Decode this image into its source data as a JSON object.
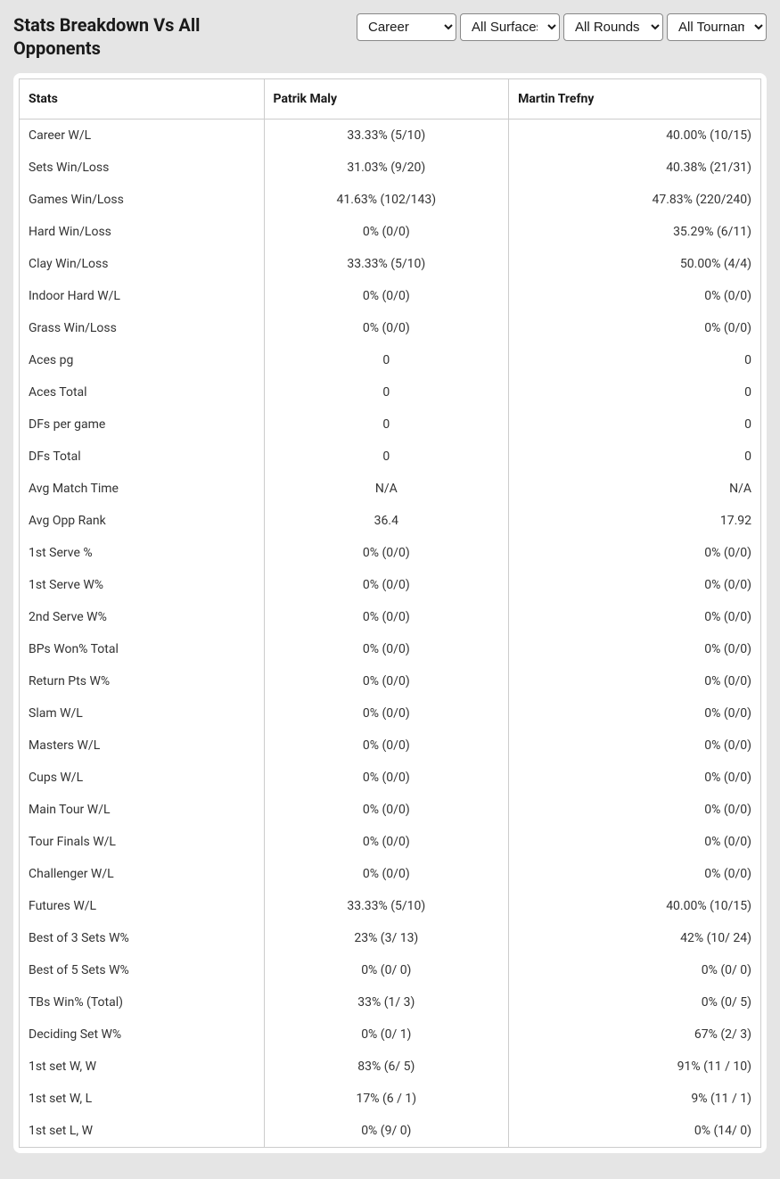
{
  "title": "Stats Breakdown Vs All Opponents",
  "filters": {
    "period": {
      "selected": "Career",
      "options": [
        "Career"
      ]
    },
    "surface": {
      "selected": "All Surfaces",
      "options": [
        "All Surfaces"
      ]
    },
    "rounds": {
      "selected": "All Rounds",
      "options": [
        "All Rounds"
      ]
    },
    "tournaments": {
      "selected": "All Tournaments",
      "options": [
        "All Tournaments"
      ]
    }
  },
  "table": {
    "headers": {
      "stat": "Stats",
      "player1": "Patrik Maly",
      "player2": "Martin Trefny"
    },
    "rows": [
      {
        "stat": "Career W/L",
        "p1": "33.33% (5/10)",
        "p2": "40.00% (10/15)"
      },
      {
        "stat": "Sets Win/Loss",
        "p1": "31.03% (9/20)",
        "p2": "40.38% (21/31)"
      },
      {
        "stat": "Games Win/Loss",
        "p1": "41.63% (102/143)",
        "p2": "47.83% (220/240)"
      },
      {
        "stat": "Hard Win/Loss",
        "p1": "0% (0/0)",
        "p2": "35.29% (6/11)"
      },
      {
        "stat": "Clay Win/Loss",
        "p1": "33.33% (5/10)",
        "p2": "50.00% (4/4)"
      },
      {
        "stat": "Indoor Hard W/L",
        "p1": "0% (0/0)",
        "p2": "0% (0/0)"
      },
      {
        "stat": "Grass Win/Loss",
        "p1": "0% (0/0)",
        "p2": "0% (0/0)"
      },
      {
        "stat": "Aces pg",
        "p1": "0",
        "p2": "0"
      },
      {
        "stat": "Aces Total",
        "p1": "0",
        "p2": "0"
      },
      {
        "stat": "DFs per game",
        "p1": "0",
        "p2": "0"
      },
      {
        "stat": "DFs Total",
        "p1": "0",
        "p2": "0"
      },
      {
        "stat": "Avg Match Time",
        "p1": "N/A",
        "p2": "N/A"
      },
      {
        "stat": "Avg Opp Rank",
        "p1": "36.4",
        "p2": "17.92"
      },
      {
        "stat": "1st Serve %",
        "p1": "0% (0/0)",
        "p2": "0% (0/0)"
      },
      {
        "stat": "1st Serve W%",
        "p1": "0% (0/0)",
        "p2": "0% (0/0)"
      },
      {
        "stat": "2nd Serve W%",
        "p1": "0% (0/0)",
        "p2": "0% (0/0)"
      },
      {
        "stat": "BPs Won% Total",
        "p1": "0% (0/0)",
        "p2": "0% (0/0)"
      },
      {
        "stat": "Return Pts W%",
        "p1": "0% (0/0)",
        "p2": "0% (0/0)"
      },
      {
        "stat": "Slam W/L",
        "p1": "0% (0/0)",
        "p2": "0% (0/0)"
      },
      {
        "stat": "Masters W/L",
        "p1": "0% (0/0)",
        "p2": "0% (0/0)"
      },
      {
        "stat": "Cups W/L",
        "p1": "0% (0/0)",
        "p2": "0% (0/0)"
      },
      {
        "stat": "Main Tour W/L",
        "p1": "0% (0/0)",
        "p2": "0% (0/0)"
      },
      {
        "stat": "Tour Finals W/L",
        "p1": "0% (0/0)",
        "p2": "0% (0/0)"
      },
      {
        "stat": "Challenger W/L",
        "p1": "0% (0/0)",
        "p2": "0% (0/0)"
      },
      {
        "stat": "Futures W/L",
        "p1": "33.33% (5/10)",
        "p2": "40.00% (10/15)"
      },
      {
        "stat": "Best of 3 Sets W%",
        "p1": "23% (3/ 13)",
        "p2": "42% (10/ 24)"
      },
      {
        "stat": "Best of 5 Sets W%",
        "p1": "0% (0/ 0)",
        "p2": "0% (0/ 0)"
      },
      {
        "stat": "TBs Win% (Total)",
        "p1": "33% (1/ 3)",
        "p2": "0% (0/ 5)"
      },
      {
        "stat": "Deciding Set W%",
        "p1": "0% (0/ 1)",
        "p2": "67% (2/ 3)"
      },
      {
        "stat": "1st set W, W",
        "p1": "83% (6/ 5)",
        "p2": "91% (11 / 10)"
      },
      {
        "stat": "1st set W, L",
        "p1": "17% (6 / 1)",
        "p2": "9% (11 / 1)"
      },
      {
        "stat": "1st set L, W",
        "p1": "0% (9/ 0)",
        "p2": "0% (14/ 0)"
      }
    ]
  },
  "styling": {
    "background_color": "#e5e5e5",
    "card_background": "#ffffff",
    "border_color": "#cccccc",
    "text_color": "#1a1a1a",
    "row_text_color": "#333333",
    "title_fontsize": 20,
    "header_fontsize": 14,
    "row_fontsize": 14
  }
}
